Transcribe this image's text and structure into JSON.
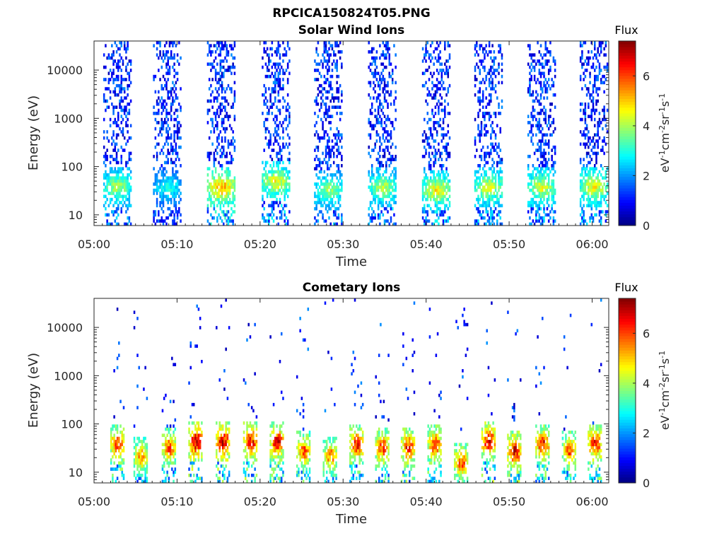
{
  "figure": {
    "title": "RPCICA150824T05.PNG"
  },
  "chart_data": [
    {
      "type": "heatmap",
      "title": "Solar Wind Ions",
      "xlabel": "Time",
      "ylabel": "Energy (eV)",
      "x_ticks": [
        "05:00",
        "05:10",
        "05:20",
        "05:30",
        "05:40",
        "05:50",
        "06:00"
      ],
      "xlim": [
        "05:00",
        "06:02"
      ],
      "y_scale": "log",
      "y_ticks": [
        "10",
        "100",
        "1000",
        "10000"
      ],
      "ylim": [
        6,
        40000
      ],
      "colorbar": {
        "label": "Flux",
        "units": "eV-1 cm-2 sr-1 s-1",
        "ticks": [
          "0",
          "2",
          "4",
          "6"
        ],
        "range": [
          0,
          7.4
        ],
        "colormap": "jet"
      },
      "colors": {
        "low": "#00008f",
        "high": "#7f0000"
      },
      "grid": false,
      "sweeps": [
        {
          "center_min": 2.8,
          "peak_energy_ev": 35,
          "peak_flux": 4.0
        },
        {
          "center_min": 8.8,
          "peak_energy_ev": 35,
          "peak_flux": 3.0
        },
        {
          "center_min": 15.3,
          "peak_energy_ev": 35,
          "peak_flux": 5.2
        },
        {
          "center_min": 21.9,
          "peak_energy_ev": 45,
          "peak_flux": 4.5
        },
        {
          "center_min": 28.2,
          "peak_energy_ev": 30,
          "peak_flux": 3.8
        },
        {
          "center_min": 34.7,
          "peak_energy_ev": 35,
          "peak_flux": 4.0
        },
        {
          "center_min": 41.2,
          "peak_energy_ev": 30,
          "peak_flux": 4.6
        },
        {
          "center_min": 47.5,
          "peak_energy_ev": 35,
          "peak_flux": 4.3
        },
        {
          "center_min": 53.9,
          "peak_energy_ev": 35,
          "peak_flux": 4.3
        },
        {
          "center_min": 60.2,
          "peak_energy_ev": 35,
          "peak_flux": 4.5
        }
      ]
    },
    {
      "type": "heatmap",
      "title": "Cometary Ions",
      "xlabel": "Time",
      "ylabel": "Energy (eV)",
      "x_ticks": [
        "05:00",
        "05:10",
        "05:20",
        "05:30",
        "05:40",
        "05:50",
        "06:00"
      ],
      "xlim": [
        "05:00",
        "06:02"
      ],
      "y_scale": "log",
      "y_ticks": [
        "10",
        "100",
        "1000",
        "10000"
      ],
      "ylim": [
        6,
        40000
      ],
      "colorbar": {
        "label": "Flux",
        "units": "eV-1 cm-2 sr-1 s-1",
        "ticks": [
          "0",
          "2",
          "4",
          "6"
        ],
        "range": [
          0,
          7.4
        ],
        "colormap": "jet"
      },
      "colors": {
        "low": "#00008f",
        "high": "#7f0000"
      },
      "grid": false,
      "sweeps": [
        {
          "center_min": 2.8,
          "peak_energy_ev": 35,
          "peak_flux": 6.2
        },
        {
          "center_min": 5.6,
          "peak_energy_ev": 20,
          "peak_flux": 5.6
        },
        {
          "center_min": 9.0,
          "peak_energy_ev": 30,
          "peak_flux": 6.0
        },
        {
          "center_min": 12.2,
          "peak_energy_ev": 40,
          "peak_flux": 7.0
        },
        {
          "center_min": 15.5,
          "peak_energy_ev": 40,
          "peak_flux": 6.9
        },
        {
          "center_min": 18.8,
          "peak_energy_ev": 40,
          "peak_flux": 6.6
        },
        {
          "center_min": 22.0,
          "peak_energy_ev": 40,
          "peak_flux": 6.5
        },
        {
          "center_min": 25.2,
          "peak_energy_ev": 25,
          "peak_flux": 6.0
        },
        {
          "center_min": 28.4,
          "peak_energy_ev": 20,
          "peak_flux": 5.8
        },
        {
          "center_min": 31.6,
          "peak_energy_ev": 35,
          "peak_flux": 6.5
        },
        {
          "center_min": 34.7,
          "peak_energy_ev": 30,
          "peak_flux": 6.2
        },
        {
          "center_min": 37.8,
          "peak_energy_ev": 30,
          "peak_flux": 6.4
        },
        {
          "center_min": 41.0,
          "peak_energy_ev": 35,
          "peak_flux": 6.3
        },
        {
          "center_min": 44.2,
          "peak_energy_ev": 15,
          "peak_flux": 6.0
        },
        {
          "center_min": 47.5,
          "peak_energy_ev": 40,
          "peak_flux": 6.8
        },
        {
          "center_min": 50.6,
          "peak_energy_ev": 25,
          "peak_flux": 6.7
        },
        {
          "center_min": 54.0,
          "peak_energy_ev": 35,
          "peak_flux": 6.4
        },
        {
          "center_min": 57.2,
          "peak_energy_ev": 25,
          "peak_flux": 6.0
        },
        {
          "center_min": 60.3,
          "peak_energy_ev": 35,
          "peak_flux": 6.5
        }
      ]
    }
  ]
}
